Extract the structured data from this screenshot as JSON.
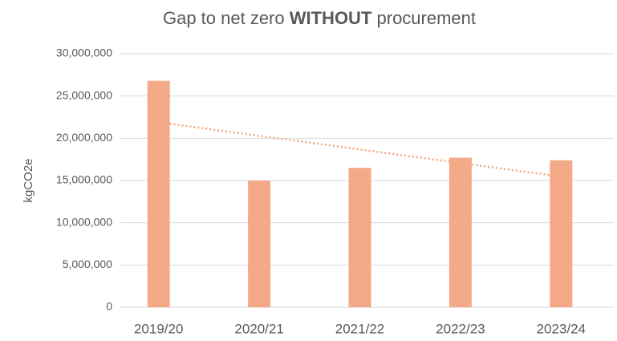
{
  "chart_data": {
    "type": "bar",
    "title": "Gap to net zero WITHOUT procurement",
    "title_bold": "WITHOUT",
    "y_label": "kgCO2e",
    "categories": [
      "2019/20",
      "2020/21",
      "2021/22",
      "2022/23",
      "2023/24"
    ],
    "values": [
      26800000,
      15000000,
      16500000,
      17700000,
      17400000
    ],
    "color": "#f4a988",
    "trendline": "linear",
    "trendline_color": "#f0a878",
    "ylim": [
      0,
      30000000
    ],
    "yticks": [
      {
        "value": 0,
        "label": "0"
      },
      {
        "value": 5000000,
        "label": "5,000,000"
      },
      {
        "value": 10000000,
        "label": "10,000,000"
      },
      {
        "value": 15000000,
        "label": "15,000,000"
      },
      {
        "value": 20000000,
        "label": "20,000,000"
      },
      {
        "value": 25000000,
        "label": "25,000,000"
      },
      {
        "value": 30000000,
        "label": "30,000,000"
      }
    ],
    "grid": true
  }
}
